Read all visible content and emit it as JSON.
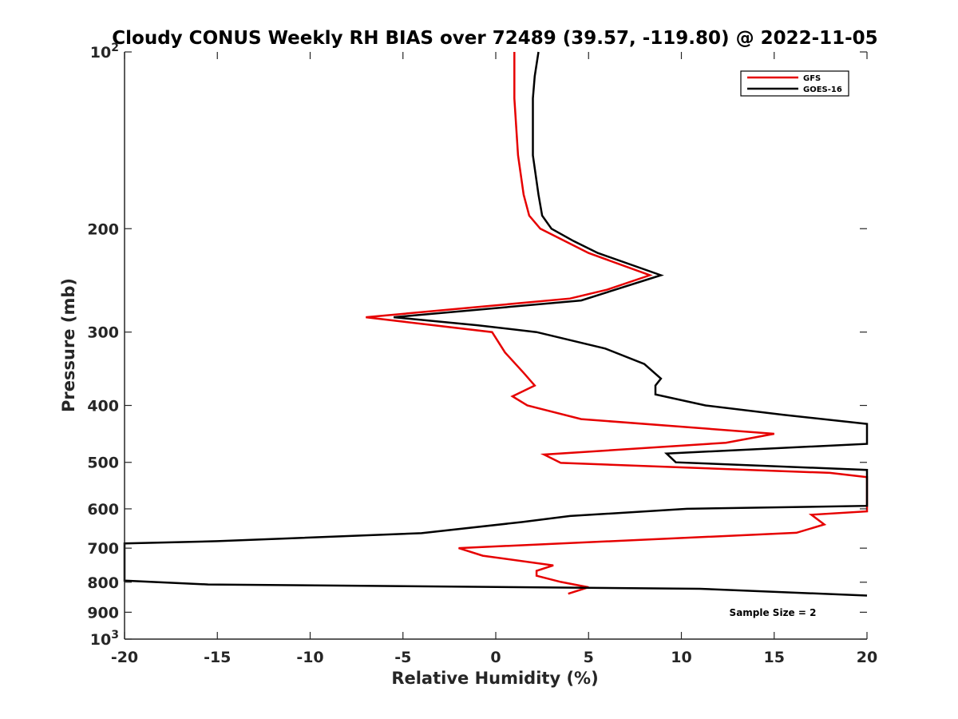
{
  "chart_data": {
    "type": "line",
    "title": "Cloudy CONUS Weekly RH BIAS over 72489 (39.57, -119.80) @ 2022-11-05",
    "xlabel": "Relative Humidity (%)",
    "ylabel": "Pressure (mb)",
    "xlim": [
      -20,
      20
    ],
    "ylim": [
      100,
      1000
    ],
    "y_scale": "log",
    "y_reversed": true,
    "grid": false,
    "legend_position": "top-right",
    "annotation": "Sample Size = 2",
    "x_ticks": [
      {
        "value": -20,
        "label": "-20"
      },
      {
        "value": -15,
        "label": "-15"
      },
      {
        "value": -10,
        "label": "-10"
      },
      {
        "value": -5,
        "label": "-5"
      },
      {
        "value": 0,
        "label": "0"
      },
      {
        "value": 5,
        "label": "5"
      },
      {
        "value": 10,
        "label": "10"
      },
      {
        "value": 15,
        "label": "15"
      },
      {
        "value": 20,
        "label": "20"
      }
    ],
    "y_ticks": [
      {
        "value": 100,
        "base": "10",
        "exp": "2"
      },
      {
        "value": 200,
        "label": "200"
      },
      {
        "value": 300,
        "label": "300"
      },
      {
        "value": 400,
        "label": "400"
      },
      {
        "value": 500,
        "label": "500"
      },
      {
        "value": 600,
        "label": "600"
      },
      {
        "value": 700,
        "label": "700"
      },
      {
        "value": 800,
        "label": "800"
      },
      {
        "value": 900,
        "label": "900"
      },
      {
        "value": 1000,
        "base": "10",
        "exp": "3"
      }
    ],
    "series": [
      {
        "name": "GFS",
        "color": "#e60000",
        "points": [
          [
            1.0,
            100
          ],
          [
            1.0,
            120
          ],
          [
            1.2,
            150
          ],
          [
            1.5,
            175
          ],
          [
            1.8,
            190
          ],
          [
            2.4,
            200
          ],
          [
            5.0,
            220
          ],
          [
            8.3,
            240
          ],
          [
            6.0,
            254
          ],
          [
            4.0,
            263
          ],
          [
            -7.0,
            283
          ],
          [
            -0.2,
            300
          ],
          [
            0.5,
            325
          ],
          [
            1.5,
            352
          ],
          [
            2.1,
            370
          ],
          [
            0.9,
            386
          ],
          [
            1.7,
            400
          ],
          [
            4.6,
            422
          ],
          [
            15.0,
            447
          ],
          [
            12.4,
            463
          ],
          [
            2.6,
            485
          ],
          [
            3.5,
            501
          ],
          [
            18.0,
            521
          ],
          [
            20.0,
            530
          ],
          [
            20.0,
            606
          ],
          [
            17.0,
            614
          ],
          [
            17.7,
            638
          ],
          [
            16.2,
            659
          ],
          [
            -2.0,
            700
          ],
          [
            -0.7,
            721
          ],
          [
            3.1,
            749
          ],
          [
            2.2,
            765
          ],
          [
            2.2,
            780
          ],
          [
            3.5,
            799
          ],
          [
            5.0,
            816
          ],
          [
            3.9,
            837
          ]
        ]
      },
      {
        "name": "GOES-16",
        "color": "#000000",
        "points": [
          [
            2.3,
            100
          ],
          [
            2.1,
            110
          ],
          [
            2.0,
            120
          ],
          [
            2.0,
            150
          ],
          [
            2.3,
            175
          ],
          [
            2.5,
            190
          ],
          [
            3.0,
            200
          ],
          [
            4.2,
            210
          ],
          [
            5.5,
            220
          ],
          [
            8.9,
            240
          ],
          [
            4.6,
            265
          ],
          [
            -5.5,
            283
          ],
          [
            -1.0,
            292
          ],
          [
            2.2,
            300
          ],
          [
            5.9,
            320
          ],
          [
            8.0,
            340
          ],
          [
            8.9,
            360
          ],
          [
            8.6,
            370
          ],
          [
            8.6,
            383
          ],
          [
            11.3,
            400
          ],
          [
            15.5,
            415
          ],
          [
            20.0,
            430
          ],
          [
            20.0,
            465
          ],
          [
            9.2,
            483
          ],
          [
            9.7,
            500
          ],
          [
            20.0,
            515
          ],
          [
            20.0,
            593
          ],
          [
            10.3,
            600
          ],
          [
            4.0,
            617
          ],
          [
            1.4,
            632
          ],
          [
            -4.0,
            660
          ],
          [
            -15.0,
            681
          ],
          [
            -20.0,
            687
          ],
          [
            -20.0,
            795
          ],
          [
            -15.5,
            807
          ],
          [
            11.0,
            821
          ],
          [
            20.0,
            843
          ]
        ]
      }
    ]
  }
}
